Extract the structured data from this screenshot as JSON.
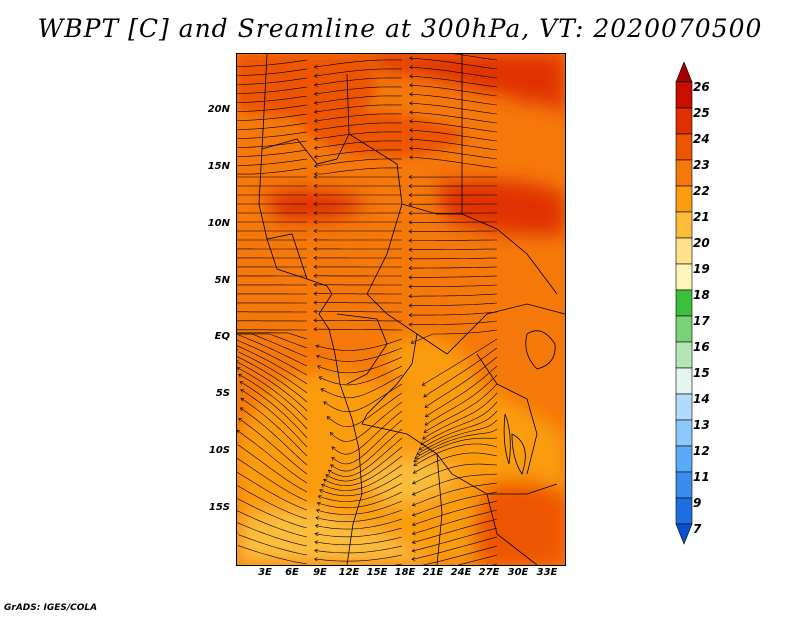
{
  "title": "WBPT [C] and Sreamline at 300hPa, VT: 2020070500",
  "credit": "GrADS: IGES/COLA",
  "lat_labels": [
    "20N",
    "15N",
    "10N",
    "5N",
    "EQ",
    "5S",
    "10S",
    "15S"
  ],
  "lon_labels": [
    "3E",
    "6E",
    "9E",
    "12E",
    "15E",
    "18E",
    "21E",
    "24E",
    "27E",
    "30E",
    "33E"
  ],
  "colorbar": {
    "levels": [
      "26",
      "25",
      "24",
      "23",
      "22",
      "21",
      "20",
      "19",
      "18",
      "17",
      "16",
      "15",
      "14",
      "13",
      "12",
      "11",
      "9",
      "7"
    ],
    "colors": [
      "#a50000",
      "#c80f00",
      "#e03000",
      "#ee5500",
      "#f5780a",
      "#fa9c0c",
      "#fcbd3c",
      "#fde28a",
      "#fdf6b8",
      "#3cbf3c",
      "#78d278",
      "#b4e6b4",
      "#e6f5f0",
      "#b4dcfa",
      "#8cc8fa",
      "#5aaaf5",
      "#3c8ced",
      "#1f6ee0",
      "#0a4fcf"
    ]
  },
  "map_colors": {
    "warm_high": "#e03000",
    "warm_mid": "#ee5500",
    "base": "#f5780a",
    "cool": "#fa9c0c",
    "coolest": "#fcbd3c"
  }
}
